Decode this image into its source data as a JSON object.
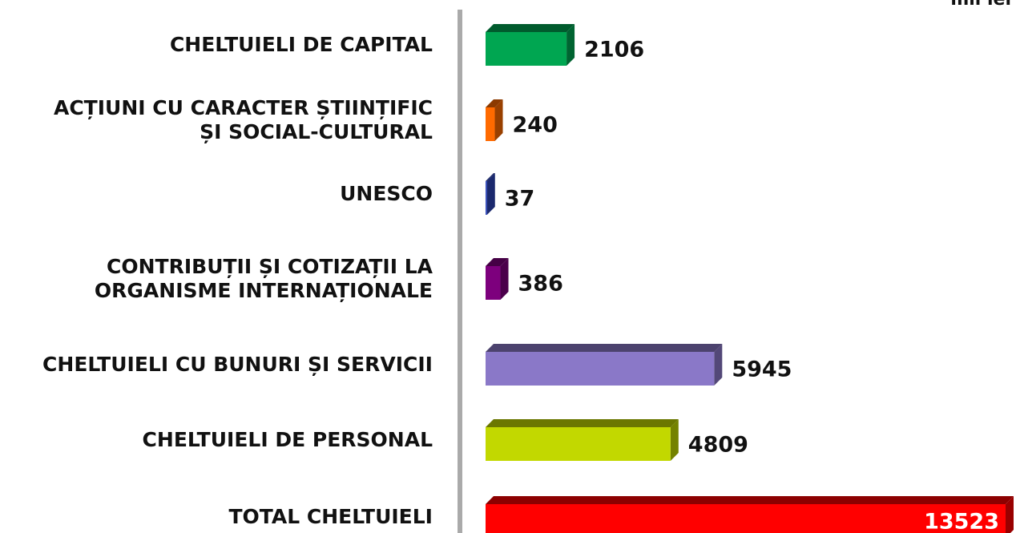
{
  "chart_data": {
    "type": "bar3d-horizontal",
    "unit": "mii lei",
    "categories": [
      "CHELTUIELI DE CAPITAL",
      "ACȚIUNI CU CARACTER ȘTIINȚIFIC\nȘI SOCIAL-CULTURAL",
      "UNESCO",
      "CONTRIBUȚII ȘI COTIZAȚII LA\nORGANISME INTERNAȚIONALE",
      "CHELTUIELI CU BUNURI ȘI SERVICII",
      "CHELTUIELI DE PERSONAL",
      "TOTAL CHELTUIELI"
    ],
    "values": [
      2106,
      240,
      37,
      386,
      5945,
      4809,
      13523
    ],
    "colors": [
      "#00a651",
      "#ff6a00",
      "#2d45b8",
      "#7d007d",
      "#8a78c8",
      "#c2d800",
      "#ff0000"
    ]
  }
}
